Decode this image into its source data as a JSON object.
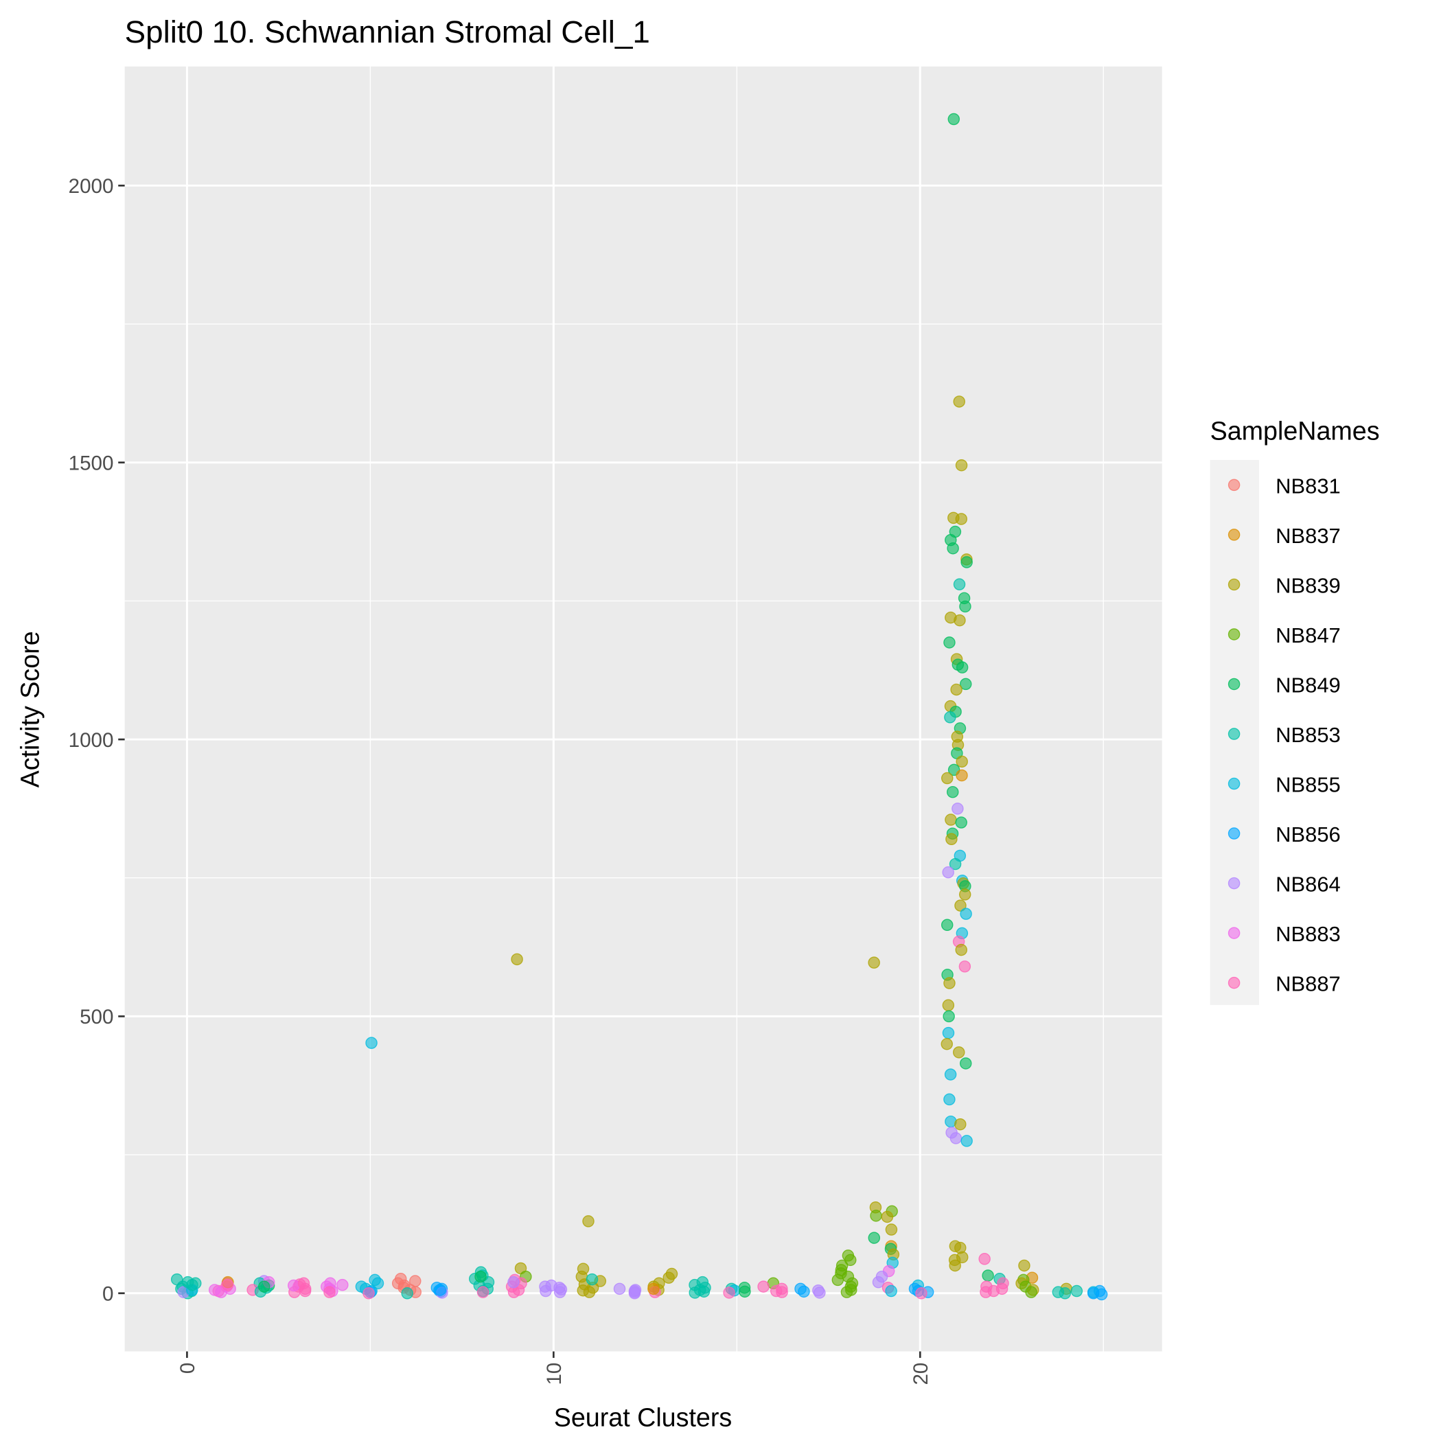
{
  "chart_data": {
    "type": "scatter",
    "title": "Split0 10. Schwannian Stromal Cell_1",
    "xlabel": "Seurat Clusters",
    "ylabel": "Activity Score",
    "xlim": [
      -1.7,
      26.6
    ],
    "ylim": [
      -105,
      2215
    ],
    "x_ticks": [
      0,
      10,
      20
    ],
    "x_tick_labels": [
      "0",
      "10",
      "20"
    ],
    "y_ticks": [
      0,
      500,
      1000,
      1500,
      2000
    ],
    "y_tick_labels": [
      "0",
      "500",
      "1000",
      "1500",
      "2000"
    ],
    "grid": true,
    "legend": {
      "title": "SampleNames",
      "position": "right",
      "entries": [
        "NB831",
        "NB837",
        "NB839",
        "NB847",
        "NB849",
        "NB853",
        "NB855",
        "NB856",
        "NB864",
        "NB883",
        "NB887"
      ],
      "colors": [
        "#F8766D",
        "#DB8E00",
        "#AEA200",
        "#64B200",
        "#00BD5C",
        "#00C1A7",
        "#00BADE",
        "#00A6FF",
        "#B385FF",
        "#EF67EB",
        "#FF63B6"
      ]
    },
    "point_format": "[cluster, activity_score, sample_index]",
    "points": [
      [
        0,
        25,
        5
      ],
      [
        0,
        18,
        5
      ],
      [
        0,
        12,
        5
      ],
      [
        0,
        8,
        5
      ],
      [
        0,
        4,
        5
      ],
      [
        0,
        0,
        5
      ],
      [
        0,
        2,
        8
      ],
      [
        0,
        6,
        6
      ],
      [
        0,
        15,
        5
      ],
      [
        0,
        20,
        5
      ],
      [
        1,
        18,
        9
      ],
      [
        1,
        12,
        10
      ],
      [
        1,
        8,
        9
      ],
      [
        1,
        4,
        10
      ],
      [
        1,
        2,
        9
      ],
      [
        1,
        20,
        1
      ],
      [
        1,
        15,
        10
      ],
      [
        1,
        6,
        9
      ],
      [
        2,
        22,
        8
      ],
      [
        2,
        18,
        5
      ],
      [
        2,
        14,
        4
      ],
      [
        2,
        10,
        5
      ],
      [
        2,
        6,
        10
      ],
      [
        2,
        3,
        5
      ],
      [
        2,
        20,
        9
      ],
      [
        2,
        12,
        4
      ],
      [
        3,
        16,
        10
      ],
      [
        3,
        12,
        10
      ],
      [
        3,
        8,
        10
      ],
      [
        3,
        4,
        10
      ],
      [
        3,
        2,
        10
      ],
      [
        3,
        14,
        9
      ],
      [
        3,
        18,
        10
      ],
      [
        4,
        18,
        9
      ],
      [
        4,
        12,
        9
      ],
      [
        4,
        8,
        9
      ],
      [
        4,
        4,
        9
      ],
      [
        4,
        2,
        10
      ],
      [
        4,
        15,
        9
      ],
      [
        5,
        452,
        6
      ],
      [
        5,
        24,
        6
      ],
      [
        5,
        18,
        6
      ],
      [
        5,
        12,
        6
      ],
      [
        5,
        8,
        6
      ],
      [
        5,
        4,
        6
      ],
      [
        5,
        2,
        7
      ],
      [
        5,
        0,
        10
      ],
      [
        6,
        26,
        0
      ],
      [
        6,
        22,
        0
      ],
      [
        6,
        18,
        0
      ],
      [
        6,
        14,
        0
      ],
      [
        6,
        10,
        0
      ],
      [
        6,
        6,
        0
      ],
      [
        6,
        2,
        0
      ],
      [
        6,
        0,
        5
      ],
      [
        7,
        10,
        7
      ],
      [
        7,
        8,
        7
      ],
      [
        7,
        5,
        7
      ],
      [
        7,
        3,
        7
      ],
      [
        7,
        1,
        8
      ],
      [
        7,
        6,
        7
      ],
      [
        8,
        38,
        5
      ],
      [
        8,
        32,
        5
      ],
      [
        8,
        26,
        5
      ],
      [
        8,
        20,
        5
      ],
      [
        8,
        14,
        5
      ],
      [
        8,
        8,
        5
      ],
      [
        8,
        4,
        5
      ],
      [
        8,
        2,
        10
      ],
      [
        8,
        30,
        4
      ],
      [
        9,
        603,
        2
      ],
      [
        9,
        45,
        2
      ],
      [
        9,
        30,
        3
      ],
      [
        9,
        24,
        10
      ],
      [
        9,
        18,
        10
      ],
      [
        9,
        12,
        10
      ],
      [
        9,
        6,
        10
      ],
      [
        9,
        2,
        10
      ],
      [
        9,
        20,
        8
      ],
      [
        10,
        14,
        8
      ],
      [
        10,
        10,
        8
      ],
      [
        10,
        7,
        8
      ],
      [
        10,
        4,
        8
      ],
      [
        10,
        2,
        8
      ],
      [
        10,
        12,
        8
      ],
      [
        11,
        130,
        2
      ],
      [
        11,
        44,
        2
      ],
      [
        11,
        30,
        2
      ],
      [
        11,
        22,
        2
      ],
      [
        11,
        16,
        2
      ],
      [
        11,
        10,
        2
      ],
      [
        11,
        5,
        2
      ],
      [
        11,
        2,
        2
      ],
      [
        11,
        25,
        5
      ],
      [
        12,
        8,
        8
      ],
      [
        12,
        6,
        8
      ],
      [
        12,
        4,
        8
      ],
      [
        12,
        2,
        8
      ],
      [
        12,
        0,
        8
      ],
      [
        13,
        35,
        2
      ],
      [
        13,
        28,
        2
      ],
      [
        13,
        18,
        2
      ],
      [
        13,
        12,
        2
      ],
      [
        13,
        6,
        2
      ],
      [
        13,
        2,
        10
      ],
      [
        13,
        8,
        1
      ],
      [
        14,
        20,
        5
      ],
      [
        14,
        15,
        5
      ],
      [
        14,
        10,
        5
      ],
      [
        14,
        6,
        5
      ],
      [
        14,
        3,
        5
      ],
      [
        14,
        1,
        5
      ],
      [
        15,
        10,
        4
      ],
      [
        15,
        8,
        5
      ],
      [
        15,
        5,
        6
      ],
      [
        15,
        3,
        4
      ],
      [
        15,
        1,
        10
      ],
      [
        16,
        18,
        3
      ],
      [
        16,
        12,
        10
      ],
      [
        16,
        8,
        10
      ],
      [
        16,
        4,
        10
      ],
      [
        16,
        2,
        10
      ],
      [
        17,
        8,
        7
      ],
      [
        17,
        5,
        8
      ],
      [
        17,
        3,
        7
      ],
      [
        17,
        1,
        8
      ],
      [
        18,
        68,
        3
      ],
      [
        18,
        60,
        3
      ],
      [
        18,
        50,
        3
      ],
      [
        18,
        42,
        3
      ],
      [
        18,
        36,
        3
      ],
      [
        18,
        30,
        3
      ],
      [
        18,
        24,
        3
      ],
      [
        18,
        18,
        3
      ],
      [
        18,
        12,
        3
      ],
      [
        18,
        6,
        3
      ],
      [
        18,
        2,
        3
      ],
      [
        19,
        597,
        2
      ],
      [
        19,
        155,
        2
      ],
      [
        19,
        148,
        3
      ],
      [
        19,
        140,
        3
      ],
      [
        19,
        138,
        2
      ],
      [
        19,
        115,
        2
      ],
      [
        19,
        100,
        4
      ],
      [
        19,
        85,
        1
      ],
      [
        19,
        80,
        4
      ],
      [
        19,
        70,
        2
      ],
      [
        19,
        55,
        6
      ],
      [
        19,
        40,
        9
      ],
      [
        19,
        30,
        8
      ],
      [
        19,
        20,
        8
      ],
      [
        19,
        10,
        10
      ],
      [
        19,
        4,
        6
      ],
      [
        20,
        14,
        6
      ],
      [
        20,
        8,
        7
      ],
      [
        20,
        4,
        7
      ],
      [
        20,
        2,
        7
      ],
      [
        20,
        0,
        10
      ],
      [
        21,
        2120,
        4
      ],
      [
        21,
        1610,
        2
      ],
      [
        21,
        1495,
        2
      ],
      [
        21,
        1400,
        2
      ],
      [
        21,
        1398,
        2
      ],
      [
        21,
        1375,
        4
      ],
      [
        21,
        1360,
        4
      ],
      [
        21,
        1345,
        4
      ],
      [
        21,
        1325,
        2
      ],
      [
        21,
        1320,
        4
      ],
      [
        21,
        1280,
        5
      ],
      [
        21,
        1255,
        4
      ],
      [
        21,
        1240,
        4
      ],
      [
        21,
        1220,
        2
      ],
      [
        21,
        1215,
        2
      ],
      [
        21,
        1175,
        4
      ],
      [
        21,
        1145,
        2
      ],
      [
        21,
        1135,
        4
      ],
      [
        21,
        1130,
        4
      ],
      [
        21,
        1100,
        4
      ],
      [
        21,
        1090,
        2
      ],
      [
        21,
        1060,
        2
      ],
      [
        21,
        1050,
        4
      ],
      [
        21,
        1040,
        5
      ],
      [
        21,
        1020,
        4
      ],
      [
        21,
        1005,
        2
      ],
      [
        21,
        990,
        2
      ],
      [
        21,
        975,
        4
      ],
      [
        21,
        960,
        2
      ],
      [
        21,
        945,
        4
      ],
      [
        21,
        935,
        1
      ],
      [
        21,
        930,
        2
      ],
      [
        21,
        905,
        4
      ],
      [
        21,
        875,
        8
      ],
      [
        21,
        855,
        2
      ],
      [
        21,
        850,
        4
      ],
      [
        21,
        830,
        4
      ],
      [
        21,
        820,
        2
      ],
      [
        21,
        790,
        6
      ],
      [
        21,
        775,
        5
      ],
      [
        21,
        760,
        8
      ],
      [
        21,
        745,
        6
      ],
      [
        21,
        740,
        2
      ],
      [
        21,
        735,
        4
      ],
      [
        21,
        720,
        2
      ],
      [
        21,
        700,
        2
      ],
      [
        21,
        685,
        6
      ],
      [
        21,
        665,
        4
      ],
      [
        21,
        650,
        6
      ],
      [
        21,
        635,
        10
      ],
      [
        21,
        620,
        2
      ],
      [
        21,
        590,
        10
      ],
      [
        21,
        575,
        4
      ],
      [
        21,
        560,
        2
      ],
      [
        21,
        520,
        2
      ],
      [
        21,
        500,
        4
      ],
      [
        21,
        470,
        6
      ],
      [
        21,
        450,
        2
      ],
      [
        21,
        435,
        2
      ],
      [
        21,
        415,
        4
      ],
      [
        21,
        395,
        6
      ],
      [
        21,
        350,
        6
      ],
      [
        21,
        310,
        6
      ],
      [
        21,
        305,
        2
      ],
      [
        21,
        290,
        8
      ],
      [
        21,
        280,
        8
      ],
      [
        21,
        275,
        6
      ],
      [
        21,
        85,
        2
      ],
      [
        21,
        82,
        2
      ],
      [
        21,
        65,
        2
      ],
      [
        21,
        60,
        2
      ],
      [
        21,
        50,
        2
      ],
      [
        22,
        62,
        10
      ],
      [
        22,
        32,
        4
      ],
      [
        22,
        26,
        5
      ],
      [
        22,
        18,
        10
      ],
      [
        22,
        12,
        10
      ],
      [
        22,
        8,
        10
      ],
      [
        22,
        4,
        10
      ],
      [
        22,
        2,
        10
      ],
      [
        23,
        50,
        2
      ],
      [
        23,
        28,
        1
      ],
      [
        23,
        24,
        3
      ],
      [
        23,
        18,
        2
      ],
      [
        23,
        12,
        3
      ],
      [
        23,
        6,
        2
      ],
      [
        23,
        2,
        3
      ],
      [
        24,
        8,
        2
      ],
      [
        24,
        4,
        5
      ],
      [
        24,
        2,
        5
      ],
      [
        24,
        0,
        5
      ],
      [
        25,
        4,
        7
      ],
      [
        25,
        2,
        6
      ],
      [
        25,
        0,
        7
      ],
      [
        25,
        -2,
        7
      ]
    ]
  }
}
